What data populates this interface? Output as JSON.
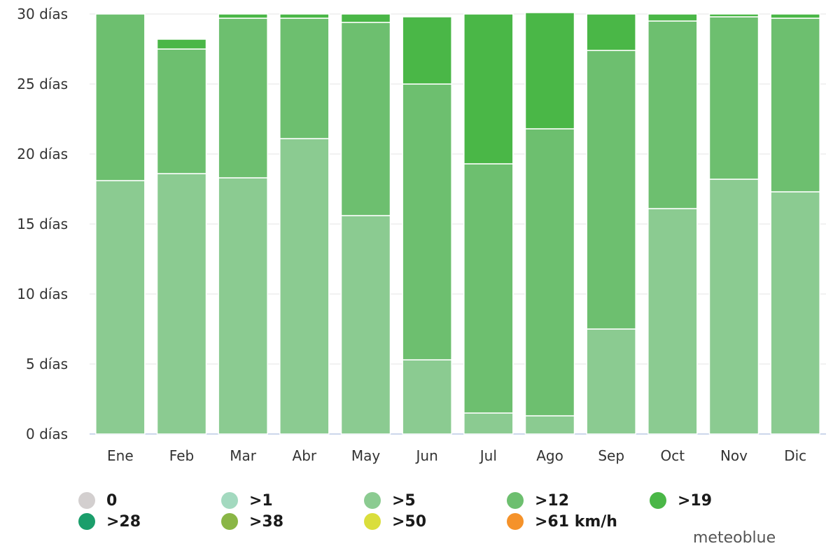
{
  "chart_data": {
    "type": "bar",
    "stacked": true,
    "title": "",
    "xlabel": "",
    "ylabel": "",
    "categories": [
      "Ene",
      "Feb",
      "Mar",
      "Abr",
      "May",
      "Jun",
      "Jul",
      "Ago",
      "Sep",
      "Oct",
      "Nov",
      "Dic"
    ],
    "y_ticks": [
      "0 días",
      "5 días",
      "10 días",
      "15 días",
      "20 días",
      "25 días",
      "30 días"
    ],
    "y_tick_values": [
      0,
      5,
      10,
      15,
      20,
      25,
      30
    ],
    "ylim": [
      0,
      30
    ],
    "grid": true,
    "legend_position": "bottom",
    "series": [
      {
        "name": "0",
        "color": "#d3cfcf",
        "values": [
          0,
          0,
          0,
          0,
          0,
          0,
          0,
          0,
          0,
          0,
          0,
          0
        ]
      },
      {
        "name": ">1",
        "color": "#a3d9bf",
        "values": [
          0,
          0,
          0,
          0,
          0,
          0,
          0,
          0,
          0,
          0,
          0,
          0
        ]
      },
      {
        "name": ">5",
        "color": "#8bcb91",
        "values": [
          18.1,
          18.6,
          18.3,
          21.1,
          15.6,
          5.3,
          1.5,
          1.3,
          7.5,
          16.1,
          18.2,
          17.3
        ]
      },
      {
        "name": ">12",
        "color": "#6dbf6f",
        "values": [
          11.9,
          8.9,
          11.4,
          8.6,
          13.8,
          19.7,
          17.8,
          20.5,
          19.9,
          13.4,
          11.6,
          12.4
        ]
      },
      {
        "name": ">19",
        "color": "#4ab747",
        "values": [
          0,
          0.7,
          0.3,
          0.3,
          0.6,
          4.8,
          10.7,
          8.3,
          2.6,
          0.5,
          0.2,
          0.3
        ]
      },
      {
        "name": ">28",
        "color": "#1b9e6b",
        "values": [
          0,
          0,
          0,
          0,
          0,
          0,
          0,
          0,
          0,
          0,
          0,
          0
        ]
      },
      {
        "name": ">38",
        "color": "#8ab646",
        "values": [
          0,
          0,
          0,
          0,
          0,
          0,
          0,
          0,
          0,
          0,
          0,
          0
        ]
      },
      {
        "name": ">50",
        "color": "#dade3c",
        "values": [
          0,
          0,
          0,
          0,
          0,
          0,
          0,
          0,
          0,
          0,
          0,
          0
        ]
      },
      {
        "name": ">61 km/h",
        "color": "#f5922a",
        "values": [
          0,
          0,
          0,
          0,
          0,
          0,
          0,
          0,
          0,
          0,
          0,
          0
        ]
      }
    ]
  },
  "brand": "meteoblue"
}
